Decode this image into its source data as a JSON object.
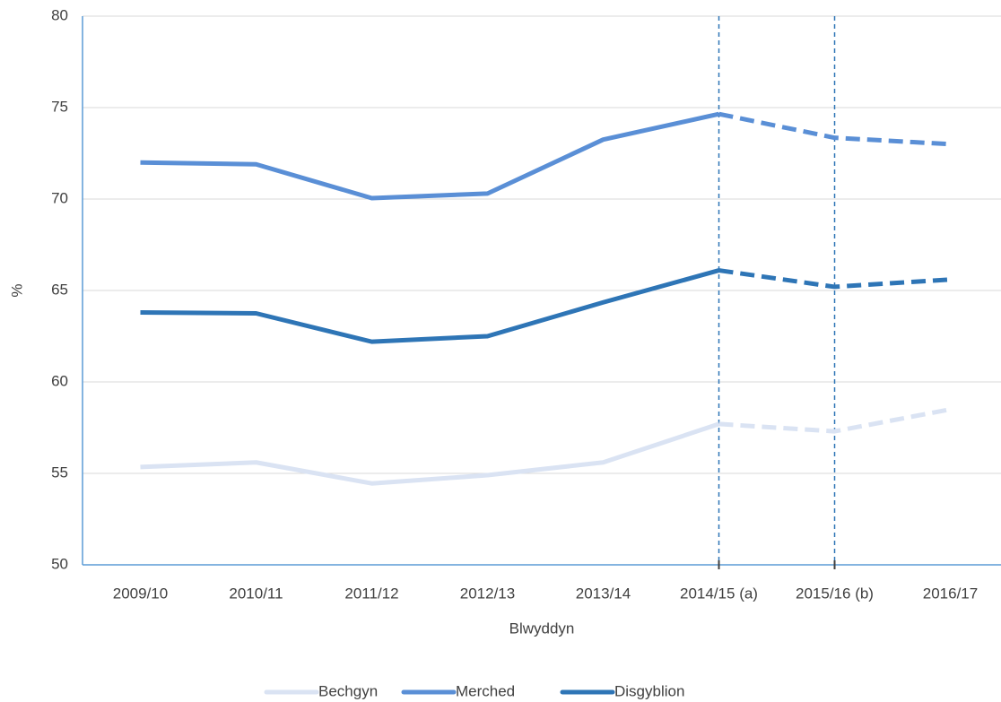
{
  "chart_data": {
    "type": "line",
    "x_label": "Blwyddyn",
    "y_label": "%",
    "categories": [
      "2009/10",
      "2010/11",
      "2011/12",
      "2012/13",
      "2013/14",
      "2014/15 (a)",
      "2015/16 (b)",
      "2016/17"
    ],
    "series": [
      {
        "name": "Bechgyn",
        "color": "#dae3f3",
        "values": [
          55.35,
          55.6,
          54.45,
          54.9,
          55.6,
          57.7,
          57.3,
          58.5
        ]
      },
      {
        "name": "Merched",
        "color": "#5a8fd6",
        "values": [
          72.0,
          71.9,
          70.05,
          70.3,
          73.25,
          74.65,
          73.35,
          73.0
        ]
      },
      {
        "name": "Disgyblion",
        "color": "#2e75b6",
        "values": [
          63.8,
          63.75,
          62.2,
          62.5,
          64.35,
          66.1,
          65.2,
          65.6
        ]
      }
    ],
    "ylim": [
      50,
      80
    ],
    "yticks": [
      50,
      55,
      60,
      65,
      70,
      75,
      80
    ],
    "grid": true,
    "dashed_from": 5,
    "vlines": [
      5,
      6
    ],
    "legend": "bottom"
  }
}
